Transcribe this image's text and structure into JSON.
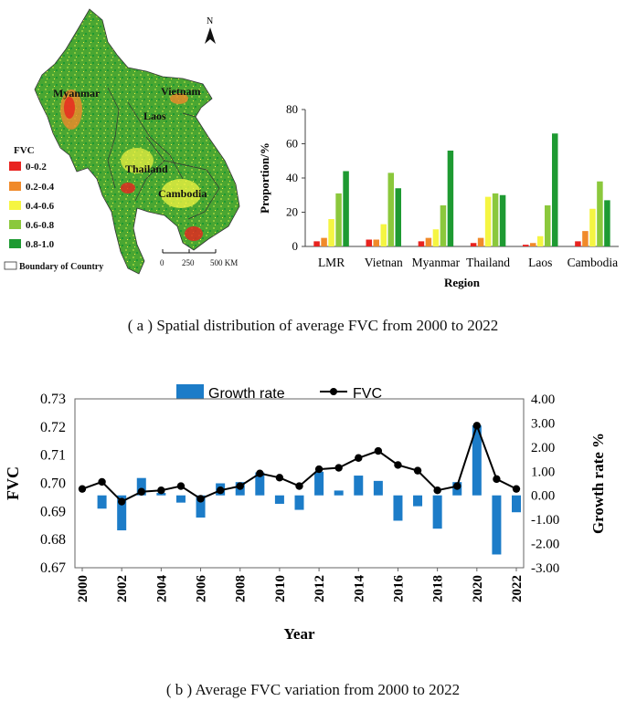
{
  "colors": {
    "fvc_0_02": "#e8231f",
    "fvc_02_04": "#f08a2a",
    "fvc_04_06": "#f5f542",
    "fvc_06_08": "#8bc83c",
    "fvc_08_10": "#1e9a32",
    "growth_bar": "#1c7cc8",
    "fvc_line": "#000000",
    "map_background": "#ffffff"
  },
  "map": {
    "north_label": "N",
    "country_labels": [
      "Myanmar",
      "Vietnam",
      "Laos",
      "Thailand",
      "Cambodia"
    ],
    "legend_title": "FVC",
    "legend_items": [
      "0-0.2",
      "0.2-0.4",
      "0.4-0.6",
      "0.6-0.8",
      "0.8-1.0"
    ],
    "boundary_label": "Boundary of Country",
    "scale_labels": [
      "0",
      "250",
      "500 KM"
    ]
  },
  "chart_data": [
    {
      "type": "bar",
      "xlabel": "Region",
      "ylabel": "Proportion/%",
      "ylim": [
        0,
        80
      ],
      "yticks": [
        "0",
        "20",
        "40",
        "60",
        "80"
      ],
      "categories": [
        "LMR",
        "Vietnan",
        "Myanmar",
        "Thailand",
        "Laos",
        "Cambodia"
      ],
      "series": [
        {
          "class": "0-0.2",
          "values": [
            3,
            4,
            3,
            2,
            1,
            3
          ]
        },
        {
          "class": "0.2-0.4",
          "values": [
            5,
            4,
            5,
            5,
            2,
            9
          ]
        },
        {
          "class": "0.4-0.6",
          "values": [
            16,
            13,
            10,
            29,
            6,
            22
          ]
        },
        {
          "class": "0.6-0.8",
          "values": [
            31,
            43,
            24,
            31,
            24,
            38
          ]
        },
        {
          "class": "0.8-1.0",
          "values": [
            44,
            34,
            56,
            30,
            66,
            27
          ]
        }
      ]
    },
    {
      "type": "bar+line",
      "xlabel": "Year",
      "ylabel_left": "FVC",
      "ylabel_right": "Growth rate %",
      "legend": [
        "Growth rate",
        "FVC"
      ],
      "ylim_left": [
        0.67,
        0.73
      ],
      "ylim_right": [
        -3.0,
        4.0
      ],
      "yticks_left": [
        "0.67",
        "0.68",
        "0.69",
        "0.70",
        "0.71",
        "0.72",
        "0.73"
      ],
      "yticks_right": [
        "-3.00",
        "-2.00",
        "-1.00",
        "0.00",
        "1.00",
        "2.00",
        "3.00",
        "4.00"
      ],
      "xtick_labels": [
        "2000",
        "2002",
        "2004",
        "2006",
        "2008",
        "2010",
        "2012",
        "2014",
        "2016",
        "2018",
        "2020",
        "2022"
      ],
      "x": [
        2000,
        2001,
        2002,
        2003,
        2004,
        2005,
        2006,
        2007,
        2008,
        2009,
        2010,
        2011,
        2012,
        2013,
        2014,
        2015,
        2016,
        2017,
        2018,
        2019,
        2020,
        2021,
        2022
      ],
      "fvc": [
        0.698,
        0.7005,
        0.6935,
        0.697,
        0.6975,
        0.699,
        0.6945,
        0.6975,
        0.699,
        0.7035,
        0.702,
        0.699,
        0.705,
        0.7055,
        0.709,
        0.7115,
        0.7065,
        0.7045,
        0.6975,
        0.699,
        0.7205,
        0.7015,
        0.698
      ],
      "growth_rate": [
        null,
        -0.55,
        -1.45,
        0.72,
        0.1,
        -0.3,
        -0.92,
        0.5,
        0.55,
        0.95,
        -0.35,
        -0.6,
        0.98,
        0.2,
        0.82,
        0.6,
        -1.05,
        -0.45,
        -1.38,
        0.55,
        2.9,
        -2.45,
        -0.7
      ]
    }
  ],
  "captions": {
    "a": "( a ) Spatial distribution of average FVC from 2000 to 2022",
    "b": "( b ) Average FVC variation from 2000 to 2022"
  }
}
